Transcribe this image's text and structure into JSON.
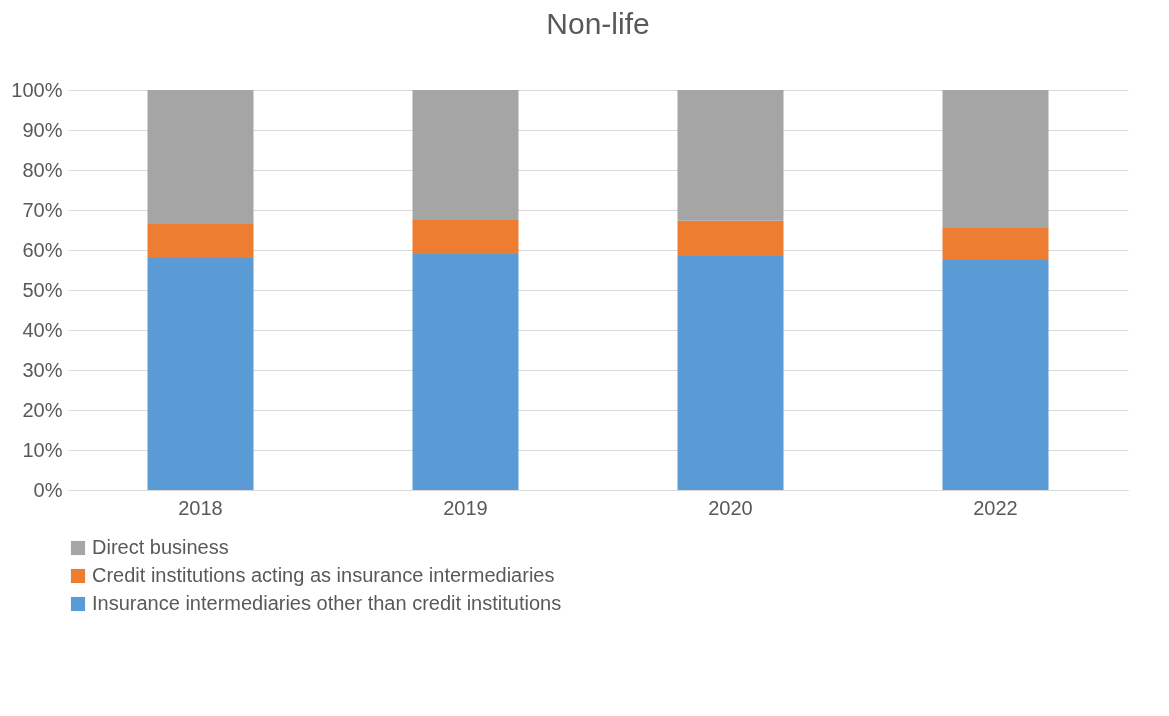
{
  "chart_data": {
    "type": "bar",
    "title": "Non-life",
    "stacked": true,
    "categories": [
      "2018",
      "2019",
      "2020",
      "2022"
    ],
    "series": [
      {
        "name": "Insurance intermediaries other than credit institutions",
        "color": "#5b9bd5",
        "values": [
          58,
          59,
          58.5,
          57.5
        ]
      },
      {
        "name": "Credit institutions acting as insurance intermediaries",
        "color": "#ed7d31",
        "values": [
          8.5,
          8.5,
          8.8,
          8
        ]
      },
      {
        "name": "Direct business",
        "color": "#a5a5a5",
        "values": [
          33.5,
          32.5,
          32.7,
          34.5
        ]
      }
    ],
    "ylim": [
      0,
      100
    ],
    "yticks": [
      {
        "value": 0,
        "label": "0%"
      },
      {
        "value": 10,
        "label": "10%"
      },
      {
        "value": 20,
        "label": "20%"
      },
      {
        "value": 30,
        "label": "30%"
      },
      {
        "value": 40,
        "label": "40%"
      },
      {
        "value": 50,
        "label": "50%"
      },
      {
        "value": 60,
        "label": "60%"
      },
      {
        "value": 70,
        "label": "70%"
      },
      {
        "value": 80,
        "label": "80%"
      },
      {
        "value": 90,
        "label": "90%"
      },
      {
        "value": 100,
        "label": "100%"
      }
    ],
    "grid": "y",
    "legend": "bottom left"
  }
}
